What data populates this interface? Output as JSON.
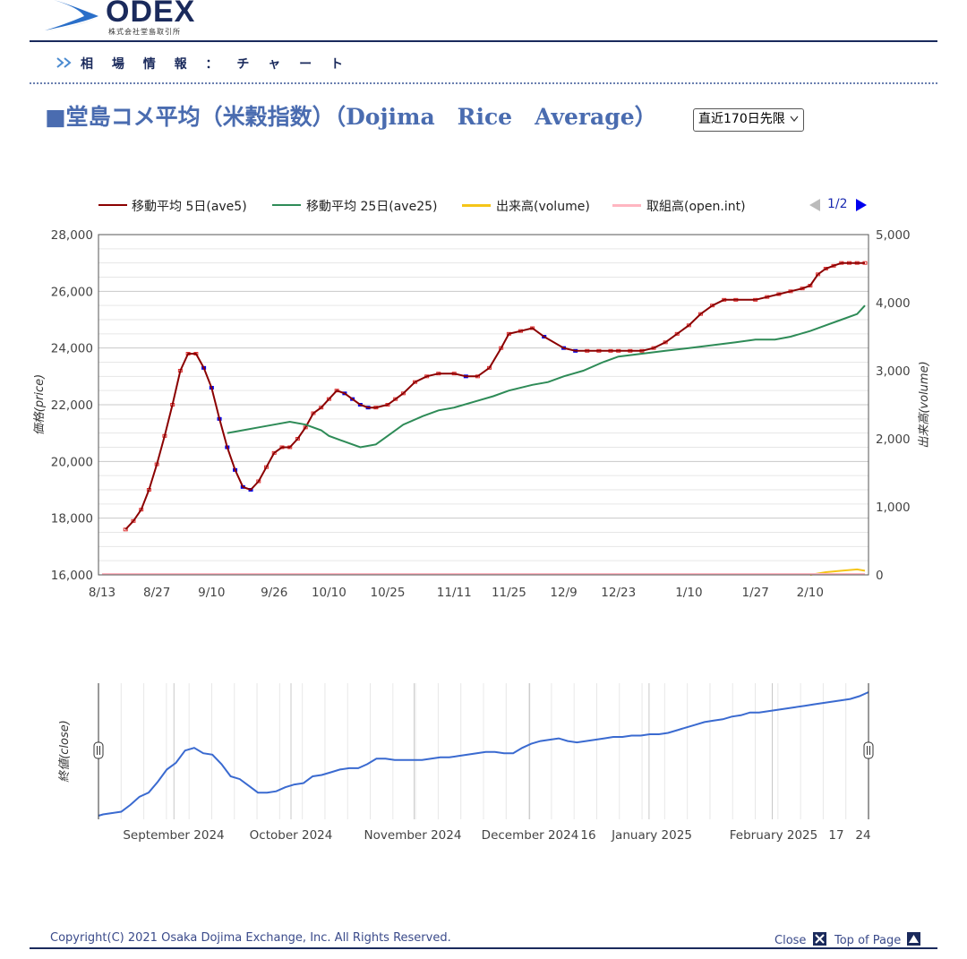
{
  "header": {
    "logo_text": "ODEX",
    "logo_subtitle": "株式会社堂島取引所",
    "breadcrumb": "相 場 情 報 ： チ ャ ー ト"
  },
  "page": {
    "title": "■堂島コメ平均（米穀指数）（Dojima　Rice　Average）",
    "range_select": "直近170日先限"
  },
  "legend": {
    "items": [
      {
        "label": "移動平均 5日(ave5)",
        "color": "#8b0000"
      },
      {
        "label": "移動平均 25日(ave25)",
        "color": "#2e8b57"
      },
      {
        "label": "出来高(volume)",
        "color": "#f5c518"
      },
      {
        "label": "取組高(open.int)",
        "color": "#ffb6c1"
      }
    ],
    "pager": "1/2"
  },
  "colors": {
    "navy": "#1a2a5c",
    "title_blue": "#4a6cb0",
    "up_candle": "#e03030",
    "down_candle": "#0000ee",
    "ave5": "#8b0000",
    "ave25": "#2e8b57",
    "close_line": "#3a6ad0"
  },
  "chart_data": [
    {
      "type": "line",
      "title": "",
      "ylabel": "価格(price)",
      "y2label": "出来高(volume)",
      "ylim": [
        16000,
        28000
      ],
      "y2lim": [
        0,
        5000
      ],
      "yticks": [
        "28,000",
        "26,000",
        "24,000",
        "22,000",
        "20,000",
        "18,000",
        "16,000"
      ],
      "y2ticks": [
        "5,000",
        "4,000",
        "3,000",
        "2,000",
        "1,000",
        "0"
      ],
      "xticks": [
        "8/13",
        "8/27",
        "9/10",
        "9/26",
        "10/10",
        "10/25",
        "11/11",
        "11/25",
        "12/9",
        "12/23",
        "1/10",
        "1/27",
        "2/10"
      ],
      "grid": true,
      "legend_position": "top",
      "series": [
        {
          "name": "移動平均 5日(ave5)",
          "x": [
            "8/19",
            "8/21",
            "8/23",
            "8/25",
            "8/27",
            "8/29",
            "8/31",
            "9/2",
            "9/4",
            "9/6",
            "9/8",
            "9/10",
            "9/12",
            "9/14",
            "9/16",
            "9/18",
            "9/20",
            "9/22",
            "9/24",
            "9/26",
            "9/28",
            "9/30",
            "10/2",
            "10/4",
            "10/6",
            "10/8",
            "10/10",
            "10/12",
            "10/14",
            "10/16",
            "10/18",
            "10/20",
            "10/22",
            "10/25",
            "10/27",
            "10/29",
            "11/1",
            "11/4",
            "11/7",
            "11/11",
            "11/14",
            "11/17",
            "11/20",
            "11/23",
            "11/25",
            "11/28",
            "12/1",
            "12/4",
            "12/9",
            "12/12",
            "12/15",
            "12/18",
            "12/21",
            "12/23",
            "12/26",
            "12/29",
            "1/1",
            "1/4",
            "1/7",
            "1/10",
            "1/13",
            "1/16",
            "1/19",
            "1/22",
            "1/27",
            "1/30",
            "2/2",
            "2/5",
            "2/8",
            "2/10",
            "2/12",
            "2/14",
            "2/16",
            "2/18",
            "2/20",
            "2/22",
            "2/24"
          ],
          "values": [
            17600,
            17900,
            18300,
            19000,
            19900,
            20900,
            22000,
            23200,
            23800,
            23800,
            23300,
            22600,
            21500,
            20500,
            19700,
            19100,
            19000,
            19300,
            19800,
            20300,
            20500,
            20500,
            20800,
            21200,
            21700,
            21900,
            22200,
            22500,
            22400,
            22200,
            22000,
            21900,
            21900,
            22000,
            22200,
            22400,
            22800,
            23000,
            23100,
            23100,
            23000,
            23000,
            23300,
            24000,
            24500,
            24600,
            24700,
            24400,
            24000,
            23900,
            23900,
            23900,
            23900,
            23900,
            23900,
            23900,
            24000,
            24200,
            24500,
            24800,
            25200,
            25500,
            25700,
            25700,
            25700,
            25800,
            25900,
            26000,
            26100,
            26200,
            26600,
            26800,
            26900,
            27000,
            27000,
            27000,
            27000
          ]
        },
        {
          "name": "移動平均 25日(ave25)",
          "x": [
            "9/14",
            "9/18",
            "9/22",
            "9/26",
            "9/30",
            "10/4",
            "10/8",
            "10/10",
            "10/14",
            "10/18",
            "10/22",
            "10/25",
            "10/29",
            "11/3",
            "11/7",
            "11/11",
            "11/16",
            "11/21",
            "11/25",
            "12/1",
            "12/5",
            "12/9",
            "12/14",
            "12/19",
            "12/23",
            "12/29",
            "1/4",
            "1/10",
            "1/16",
            "1/22",
            "1/27",
            "2/1",
            "2/5",
            "2/10",
            "2/14",
            "2/18",
            "2/22",
            "2/24"
          ],
          "values": [
            21000,
            21100,
            21200,
            21300,
            21400,
            21300,
            21100,
            20900,
            20700,
            20500,
            20600,
            20900,
            21300,
            21600,
            21800,
            21900,
            22100,
            22300,
            22500,
            22700,
            22800,
            23000,
            23200,
            23500,
            23700,
            23800,
            23900,
            24000,
            24100,
            24200,
            24300,
            24300,
            24400,
            24600,
            24800,
            25000,
            25200,
            25500
          ]
        },
        {
          "name": "出来高(volume)",
          "x": [
            "2/10",
            "2/14",
            "2/18",
            "2/22",
            "2/24"
          ],
          "values": [
            0,
            40,
            60,
            80,
            60
          ]
        },
        {
          "name": "取組高(open.int)",
          "x": [
            "8/13",
            "2/24"
          ],
          "values": [
            0,
            0
          ]
        }
      ]
    },
    {
      "type": "line",
      "title": "",
      "ylabel": "終値(close)",
      "xticks": [
        "September 2024",
        "October 2024",
        "November 2024",
        "December 2024",
        "16",
        "January 2025",
        "February 2025",
        "17",
        "24"
      ],
      "grid": true,
      "series": [
        {
          "name": "終値(close)",
          "x_index": [
            0,
            1,
            3,
            5,
            7,
            9,
            11,
            13,
            15,
            17,
            19,
            21,
            23,
            25,
            27,
            29,
            31,
            33,
            35,
            37,
            39,
            41,
            43,
            45,
            47,
            49,
            51,
            53,
            55,
            57,
            59,
            61,
            63,
            65,
            67,
            69,
            71,
            73,
            75,
            77,
            79,
            81,
            83,
            85,
            87,
            89,
            91,
            93,
            95,
            97,
            99,
            101,
            103,
            105,
            107,
            109,
            111,
            113,
            115,
            117,
            119,
            121,
            123,
            125,
            127,
            129,
            131,
            133,
            135,
            137,
            139,
            141,
            143,
            145,
            147,
            149,
            151,
            153,
            155,
            157,
            159,
            161,
            163,
            165,
            167,
            169
          ],
          "values": [
            17200,
            17300,
            17400,
            17500,
            18000,
            18600,
            18900,
            19700,
            20600,
            21100,
            22000,
            22200,
            21800,
            21700,
            21000,
            20100,
            19900,
            19400,
            18900,
            18900,
            19000,
            19300,
            19500,
            19600,
            20100,
            20200,
            20400,
            20600,
            20700,
            20700,
            21000,
            21400,
            21400,
            21300,
            21300,
            21300,
            21300,
            21400,
            21500,
            21500,
            21600,
            21700,
            21800,
            21900,
            21900,
            21800,
            21800,
            22200,
            22500,
            22700,
            22800,
            22900,
            22700,
            22600,
            22700,
            22800,
            22900,
            23000,
            23000,
            23100,
            23100,
            23200,
            23200,
            23300,
            23500,
            23700,
            23900,
            24100,
            24200,
            24300,
            24500,
            24600,
            24800,
            24800,
            24900,
            25000,
            25100,
            25200,
            25300,
            25400,
            25500,
            25600,
            25700,
            25800,
            26000,
            26300
          ]
        }
      ]
    }
  ],
  "footer": {
    "copyright": "Copyright(C) 2021  Osaka Dojima Exchange, Inc. All Rights Reserved.",
    "close_label": "Close",
    "top_label": "Top of Page"
  }
}
